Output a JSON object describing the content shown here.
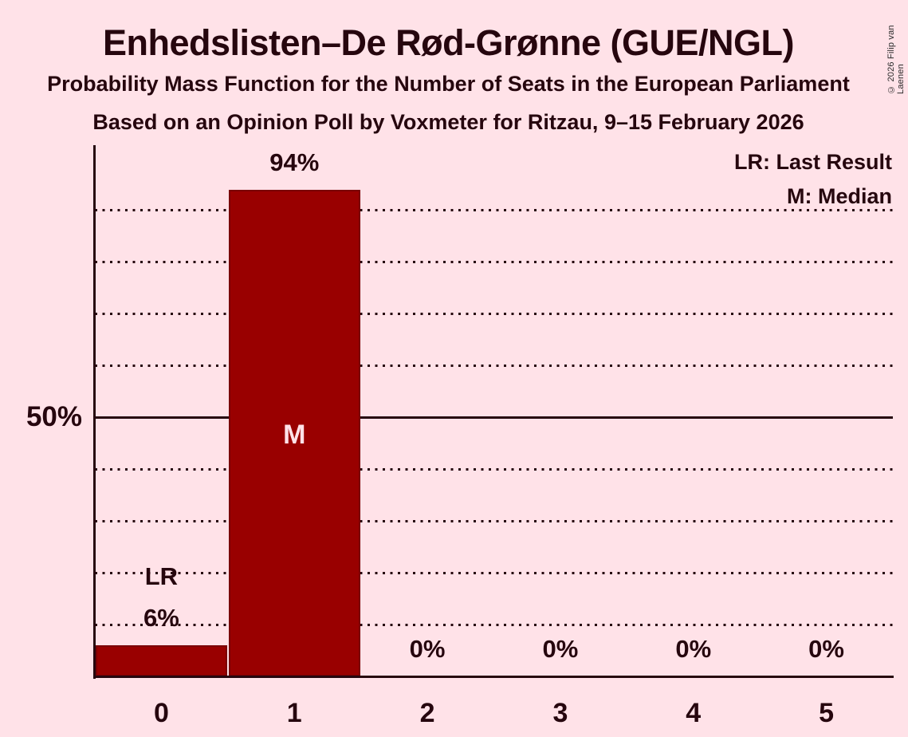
{
  "title": "Enhedslisten–De Rød-Grønne (GUE/NGL)",
  "subtitle": "Probability Mass Function for the Number of Seats in the European Parliament",
  "source_line": "Based on an Opinion Poll by Voxmeter for Ritzau, 9–15 February 2026",
  "copyright": "© 2026 Filip van Laenen",
  "legend": {
    "last_result": "LR: Last Result",
    "median": "M: Median"
  },
  "y_axis": {
    "tick_label": "50%"
  },
  "colors": {
    "background": "#FFE2E8",
    "bar": "#990000",
    "bar_stroke": "#7A0004",
    "text": "#26060E",
    "median_label": "#FFE2E8"
  },
  "chart_data": {
    "type": "bar",
    "title": "Enhedslisten–De Rød-Grønne (GUE/NGL)",
    "xlabel": "",
    "ylabel": "",
    "categories": [
      "0",
      "1",
      "2",
      "3",
      "4",
      "5"
    ],
    "values": [
      6,
      94,
      0,
      0,
      0,
      0
    ],
    "value_labels": [
      "6%",
      "94%",
      "0%",
      "0%",
      "0%",
      "0%"
    ],
    "ylim": [
      0,
      100
    ],
    "y_tick_labels": [
      "50%"
    ],
    "y_gridlines_pct": [
      10,
      20,
      30,
      40,
      50,
      60,
      70,
      80,
      90
    ],
    "solid_gridline_pct": 50,
    "grid": "dotted-horizontal",
    "legend_position": "top-right",
    "annotations": {
      "last_result_seat": 0,
      "last_result_marker": "LR",
      "median_seat": 1,
      "median_marker": "M"
    }
  }
}
